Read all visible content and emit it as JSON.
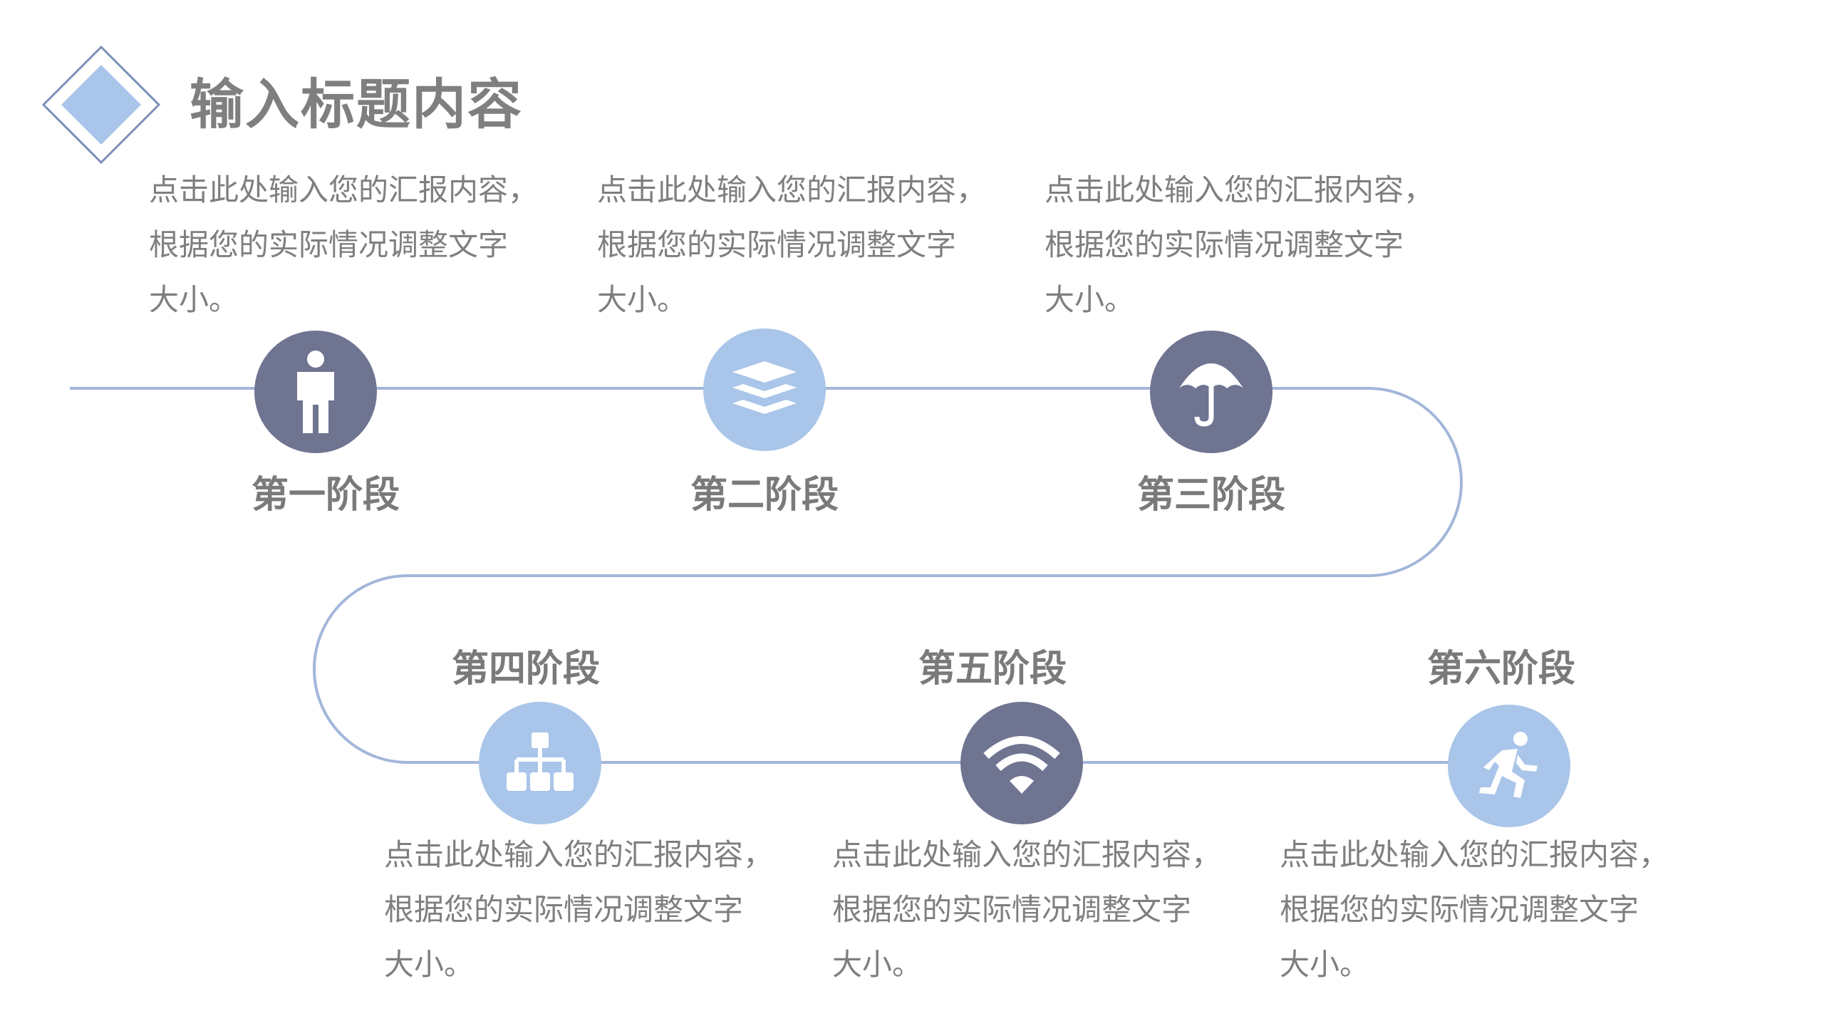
{
  "title": "输入标题内容",
  "colors": {
    "dark": "#6f7491",
    "light": "#a9c5e9",
    "line": "#a3b6da",
    "text": "#7f7f7f"
  },
  "stages": [
    {
      "label": "第一阶段",
      "icon": "person-icon",
      "lines": [
        "点击此处输入您的汇报内容，",
        "根据您的实际情况调整文字",
        "大小。"
      ]
    },
    {
      "label": "第二阶段",
      "icon": "layers-icon",
      "lines": [
        "点击此处输入您的汇报内容，",
        "根据您的实际情况调整文字",
        "大小。"
      ]
    },
    {
      "label": "第三阶段",
      "icon": "umbrella-icon",
      "lines": [
        "点击此处输入您的汇报内容，",
        "根据您的实际情况调整文字",
        "大小。"
      ]
    },
    {
      "label": "第四阶段",
      "icon": "sitemap-icon",
      "lines": [
        "点击此处输入您的汇报内容，",
        "根据您的实际情况调整文字",
        "大小。"
      ]
    },
    {
      "label": "第五阶段",
      "icon": "wifi-icon",
      "lines": [
        "点击此处输入您的汇报内容，",
        "根据您的实际情况调整文字",
        "大小。"
      ]
    },
    {
      "label": "第六阶段",
      "icon": "running-person-icon",
      "lines": [
        "点击此处输入您的汇报内容，",
        "根据您的实际情况调整文字",
        "大小。"
      ]
    }
  ]
}
